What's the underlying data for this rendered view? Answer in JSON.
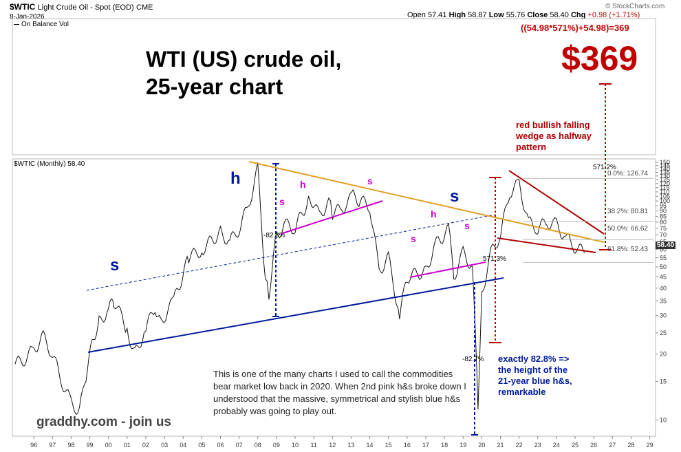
{
  "header": {
    "symbol": "$WTIC",
    "description": "Light Crude Oil - Spot (EOD)",
    "exchange": "CME",
    "date": "8-Jan-2026",
    "ohlc": {
      "open_label": "Open",
      "open": "57.41",
      "high_label": "High",
      "high": "58.87",
      "low_label": "Low",
      "low": "55.76",
      "close_label": "Close",
      "close": "58.40",
      "chg_label": "Chg",
      "chg": "+0.98 (+1.71%)"
    },
    "copyright": "© StockCharts.com",
    "indicator_label": "On Balance Vol",
    "panel_label": "$WTIC (Monthly) 58.40"
  },
  "annotations": {
    "title_line1": "WTI (US) crude oil,",
    "title_line2": "25-year chart",
    "formula": "((54.98*571%)+54.98)=369",
    "target_price": "$369",
    "wedge_note": "red bullish falling wedge as halfway pattern",
    "blue_note": "exactly 82.8% => the height of the 21-year blue h&s, remarkable",
    "body_note": "This is one of the many charts I used to call the commodities bear market low back in 2020.  When 2nd pink h&s broke down I understood that the massive, symmetrical and stylish blue h&s probably was going to play out.",
    "site": "graddhy.com - join us",
    "pct_82_8": "-82.8%",
    "pct_82_7": "-82.7%",
    "pct_571_upper": "571.2%",
    "pct_571_lower": "571.3%",
    "blue_s_left": "s",
    "blue_h": "h",
    "blue_s_right": "s",
    "pink_s1": "s",
    "pink_h1": "h",
    "pink_s2": "s",
    "pink_s3": "s",
    "pink_h2": "h",
    "pink_s4": "s"
  },
  "fib_levels": [
    {
      "label": "0.0%: 126.74"
    },
    {
      "label": "38.2%: 80.81"
    },
    {
      "label": "50.0%: 66.62"
    },
    {
      "label": "61.8%: 52.43"
    }
  ],
  "price_tag": "58.40",
  "colors": {
    "blue": "#001a9a",
    "pink": "#cc00cc",
    "orange": "#e0a020",
    "red": "#c00000",
    "price": "#111111"
  },
  "chart_data": {
    "type": "line",
    "title": "",
    "xlabel": "",
    "ylabel": "",
    "log_scale": true,
    "ylim": [
      8.5,
      150
    ],
    "x_ticks": [
      "96",
      "97",
      "98",
      "99",
      "00",
      "01",
      "02",
      "03",
      "04",
      "05",
      "06",
      "07",
      "08",
      "09",
      "10",
      "11",
      "12",
      "13",
      "14",
      "15",
      "16",
      "17",
      "18",
      "19",
      "20",
      "21",
      "22",
      "23",
      "24",
      "25",
      "26",
      "27",
      "28",
      "29"
    ],
    "y_ticks": [
      10,
      15,
      20,
      25,
      30,
      35,
      40,
      45,
      50,
      55,
      60,
      65,
      70,
      75,
      80,
      85,
      90,
      95,
      100,
      105,
      110,
      115,
      120,
      125,
      130,
      135,
      140,
      145,
      150
    ],
    "y_tick_labels": [
      "10",
      "15",
      "20",
      "25",
      "30",
      "35",
      "40",
      "45",
      "50",
      "55",
      "60",
      "65",
      "70",
      "75",
      "80",
      "85",
      "90",
      "95",
      "100",
      "105",
      "110",
      "115",
      "120",
      "125",
      "130",
      "135",
      "140",
      "145",
      "150"
    ],
    "series": [
      {
        "x": [
          1995.5,
          1996.0,
          1996.5,
          1997.0,
          1997.5,
          1998.0,
          1998.5,
          1998.95,
          1999.3,
          1999.7,
          2000.0,
          2000.5,
          2000.8,
          2001.5,
          2001.9,
          2002.5,
          2003.0,
          2003.3,
          2004.0,
          2004.8,
          2005.5,
          2006.5,
          2007.0,
          2007.5,
          2008.0,
          2008.5,
          2008.9,
          2009.1,
          2009.5,
          2010.0,
          2010.5,
          2011.3,
          2011.8,
          2012.3,
          2012.5,
          2013.0,
          2013.6,
          2014.0,
          2014.5,
          2015.0,
          2015.5,
          2016.1,
          2016.5,
          2017.5,
          2018.0,
          2018.8,
          2019.0,
          2019.5,
          2020.0,
          2020.3,
          2020.5,
          2021.0,
          2021.5,
          2022.0,
          2022.5,
          2023.0,
          2023.5,
          2024.0,
          2024.5,
          2025.0,
          2025.5,
          2026.0
        ],
        "y": [
          18,
          19,
          21,
          24,
          20,
          15,
          12,
          11,
          16,
          24,
          28,
          32,
          35,
          26,
          20,
          26,
          33,
          28,
          35,
          55,
          60,
          72,
          65,
          75,
          95,
          140,
          45,
          38,
          70,
          78,
          75,
          105,
          85,
          100,
          88,
          92,
          105,
          100,
          95,
          48,
          55,
          30,
          45,
          48,
          63,
          75,
          45,
          58,
          50,
          12,
          38,
          58,
          70,
          110,
          120,
          80,
          75,
          80,
          78,
          68,
          62,
          58
        ]
      }
    ]
  }
}
